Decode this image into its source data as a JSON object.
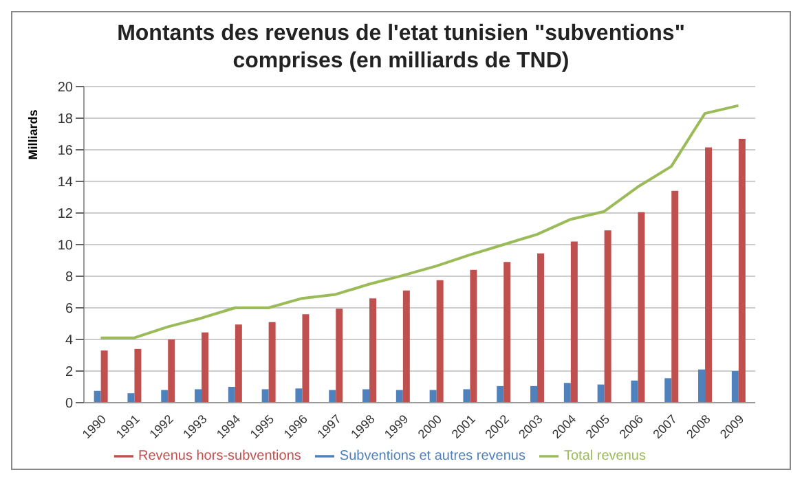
{
  "chart_data": {
    "type": "bar",
    "title": "Montants des revenus de l'etat tunisien \"subventions\" comprises (en milliards de TND)",
    "ylabel": "Milliards",
    "categories": [
      "1990",
      "1991",
      "1992",
      "1993",
      "1994",
      "1995",
      "1996",
      "1997",
      "1998",
      "1999",
      "2000",
      "2001",
      "2002",
      "2003",
      "2004",
      "2005",
      "2006",
      "2007",
      "2008",
      "2009"
    ],
    "series": [
      {
        "name": "Subventions et autres revenus",
        "color": "#4f81bd",
        "values": [
          0.75,
          0.6,
          0.8,
          0.85,
          1.0,
          0.85,
          0.9,
          0.8,
          0.85,
          0.8,
          0.8,
          0.85,
          1.05,
          1.05,
          1.25,
          1.15,
          1.4,
          1.55,
          2.1,
          2.0
        ]
      },
      {
        "name": "Revenus hors-subventions",
        "color": "#c0504d",
        "values": [
          3.3,
          3.4,
          4.0,
          4.45,
          4.95,
          5.1,
          5.6,
          5.95,
          6.6,
          7.1,
          7.75,
          8.4,
          8.9,
          9.45,
          10.2,
          10.9,
          12.05,
          13.4,
          16.15,
          16.7
        ]
      },
      {
        "name": "Total revenus",
        "type": "line",
        "color": "#9bbb59",
        "values": [
          4.1,
          4.1,
          4.8,
          5.35,
          6.0,
          6.0,
          6.6,
          6.85,
          7.5,
          8.05,
          8.65,
          9.35,
          10.0,
          10.65,
          11.6,
          12.1,
          13.65,
          14.95,
          18.3,
          18.8
        ]
      }
    ],
    "ylim": [
      0,
      20
    ],
    "yticks": [
      0,
      2,
      4,
      6,
      8,
      10,
      12,
      14,
      16,
      18,
      20
    ],
    "grid": "y",
    "legend": "bottom",
    "marker": "none"
  }
}
